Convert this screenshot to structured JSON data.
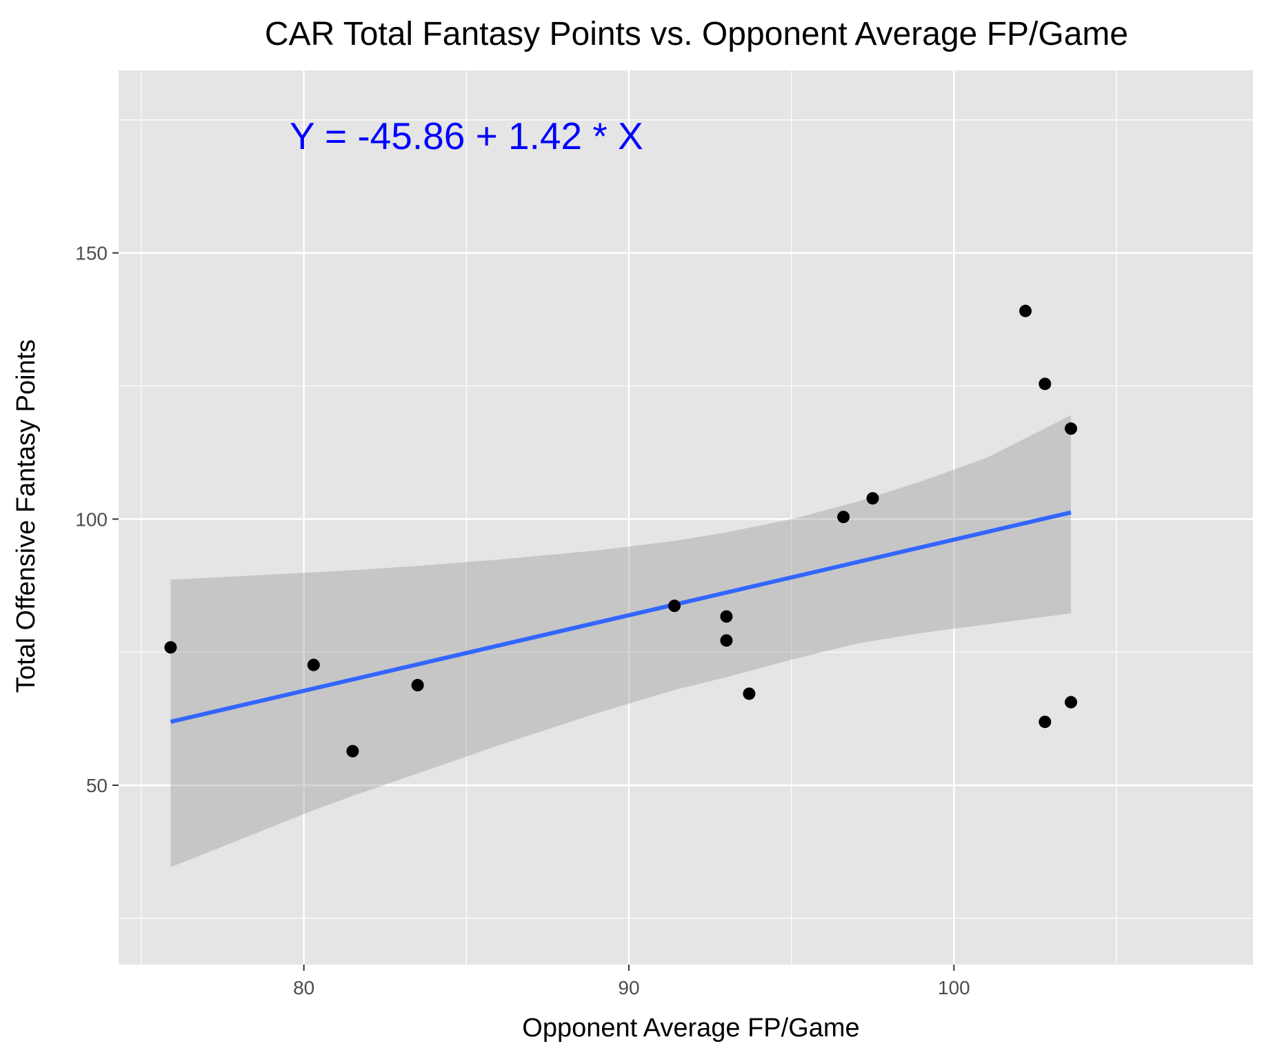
{
  "chart_data": {
    "type": "scatter",
    "title": "CAR Total Fantasy Points vs. Opponent Average FP/Game",
    "xlabel": "Opponent Average FP/Game",
    "ylabel": "Total Offensive Fantasy Points",
    "xlim": [
      74.3,
      109.2
    ],
    "ylim": [
      16.3,
      184.3
    ],
    "x_ticks": [
      80,
      90,
      100
    ],
    "x_tick_labels": [
      "80",
      "90",
      "100"
    ],
    "y_ticks": [
      50,
      100,
      150
    ],
    "y_tick_labels": [
      "50",
      "100",
      "150"
    ],
    "x_minor_gridlines": [
      75,
      85,
      95,
      105
    ],
    "y_minor_gridlines": [
      25,
      75,
      125,
      175
    ],
    "grid": true,
    "points": [
      {
        "x": 75.9,
        "y": 75.9
      },
      {
        "x": 80.3,
        "y": 72.6
      },
      {
        "x": 81.5,
        "y": 56.4
      },
      {
        "x": 83.5,
        "y": 68.8
      },
      {
        "x": 91.4,
        "y": 83.7
      },
      {
        "x": 93.0,
        "y": 81.7
      },
      {
        "x": 93.0,
        "y": 77.2
      },
      {
        "x": 93.7,
        "y": 67.2
      },
      {
        "x": 96.6,
        "y": 100.4
      },
      {
        "x": 97.5,
        "y": 103.9
      },
      {
        "x": 102.2,
        "y": 139.1
      },
      {
        "x": 102.8,
        "y": 125.4
      },
      {
        "x": 102.8,
        "y": 61.9
      },
      {
        "x": 103.6,
        "y": 117.0
      },
      {
        "x": 103.6,
        "y": 65.6
      }
    ],
    "regression": {
      "intercept": -45.86,
      "slope": 1.42,
      "x_range": [
        75.9,
        103.6
      ],
      "line_color": "#3366ff"
    },
    "confidence_band": {
      "x": [
        75.9,
        80.3,
        81.5,
        83.5,
        86.0,
        89.0,
        91.4,
        93.0,
        95.0,
        97.0,
        99.0,
        101.0,
        103.6
      ],
      "upper": [
        88.6,
        90.0,
        90.4,
        91.2,
        92.4,
        94.1,
        95.9,
        97.5,
        100.0,
        103.2,
        107.1,
        111.5,
        119.5
      ],
      "lower": [
        34.6,
        45.3,
        48.0,
        52.2,
        57.5,
        63.5,
        67.9,
        70.3,
        73.6,
        76.6,
        78.6,
        80.2,
        82.3
      ],
      "fill_color": "#999999"
    },
    "annotation": {
      "text": "Y = -45.86 + 1.42 * X",
      "x": 85.0,
      "y": 172,
      "color": "#0000ff"
    },
    "colors": {
      "panel_background": "#e5e5e5",
      "grid": "#ffffff",
      "points": "#000000",
      "ticks": "#333333"
    }
  }
}
